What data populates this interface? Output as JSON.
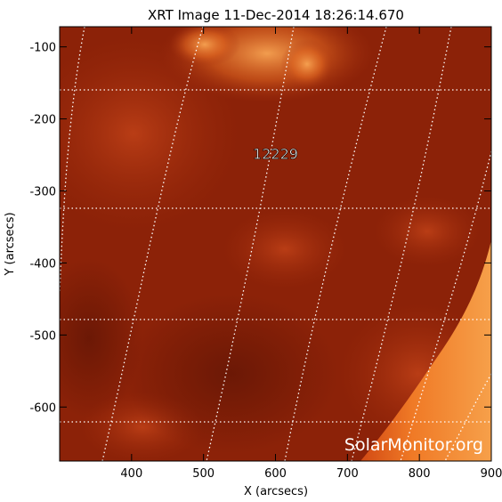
{
  "title": "XRT Image 11-Dec-2014 18:26:14.670",
  "xlabel": "X (arcsecs)",
  "ylabel": "Y (arcsecs)",
  "x_axis": {
    "range": [
      300,
      900
    ],
    "ticks": [
      "400",
      "500",
      "600",
      "700",
      "800",
      "900"
    ],
    "tick_values": [
      400,
      500,
      600,
      700,
      800,
      900
    ]
  },
  "y_axis": {
    "range": [
      -675,
      -72
    ],
    "ticks": [
      "-100",
      "-200",
      "-300",
      "-400",
      "-500",
      "-600"
    ],
    "tick_values": [
      -100,
      -200,
      -300,
      -400,
      -500,
      -600
    ]
  },
  "region_label": {
    "text": "12229",
    "x": 600,
    "y": -248
  },
  "watermark": "SolarMonitor.org",
  "grid": {
    "lat_lines_y": [
      -163,
      -333,
      -480,
      -620
    ],
    "style": "dotted"
  },
  "colors": {
    "background": "#8c2208",
    "frame": "#000000",
    "grid": "#ffffff",
    "limb": "#f06a18",
    "bright": "#f59a3c"
  }
}
